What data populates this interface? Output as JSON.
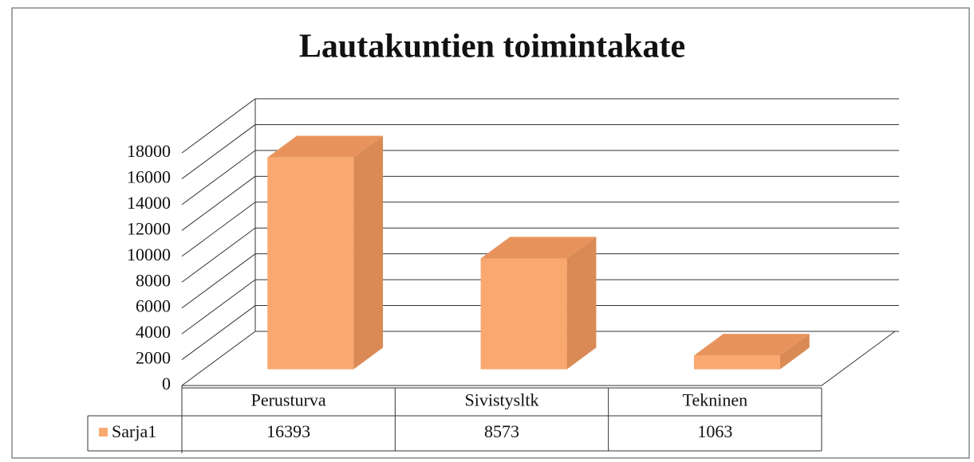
{
  "chart_data": {
    "type": "bar3d",
    "title": "Lautakuntien toimintakate",
    "categories": [
      "Perusturva",
      "Sivistysltk",
      "Tekninen"
    ],
    "series": [
      {
        "name": "Sarja1",
        "color": "#f9a870",
        "values": [
          16393,
          8573,
          1063
        ]
      }
    ],
    "ylim": [
      0,
      18000
    ],
    "yticks": [
      0,
      2000,
      4000,
      6000,
      8000,
      10000,
      12000,
      14000,
      16000,
      18000
    ],
    "grid": true,
    "data_table": true
  }
}
